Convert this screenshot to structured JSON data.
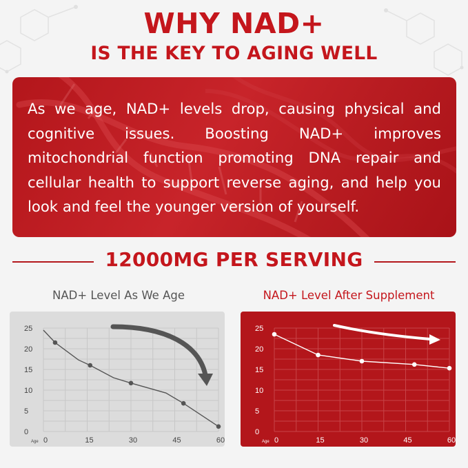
{
  "heading": {
    "line1": "WHY NAD+",
    "line2": "IS THE KEY TO AGING WELL"
  },
  "description": "As we age, NAD+ levels drop, causing physical and cognitive issues. Boosting NAD+ improves mitochondrial function promoting DNA repair and cellular health to support reverse aging, and help you look and feel the younger version of yourself.",
  "serving": "12000MG PER SERVING",
  "colors": {
    "brand_red": "#c4161c",
    "panel_red": "#b3161b",
    "chart_left_bg": "#dcdcdc",
    "chart_line_dark": "#555555",
    "white": "#ffffff"
  },
  "chart_data": [
    {
      "type": "line",
      "title": "NAD+ Level As We Age",
      "xlabel": "Age",
      "ylabel": "",
      "x_ticks": [
        0,
        15,
        30,
        45,
        60
      ],
      "y_ticks": [
        0,
        5,
        10,
        15,
        20,
        25
      ],
      "xlim": [
        0,
        60
      ],
      "ylim": [
        0,
        25
      ],
      "grid": true,
      "series": [
        {
          "x": [
            0,
            4,
            12,
            16,
            24,
            30,
            42,
            48,
            60
          ],
          "y": [
            24.5,
            21.5,
            17.3,
            16,
            13,
            11.7,
            9.3,
            6.8,
            1.2
          ],
          "markers_at_index": [
            1,
            3,
            5,
            7,
            8
          ]
        }
      ],
      "annotation": "curved arrow pointing downward"
    },
    {
      "type": "line",
      "title": "NAD+ Level After Supplement",
      "xlabel": "Age",
      "ylabel": "",
      "x_ticks": [
        0,
        15,
        30,
        45,
        60
      ],
      "y_ticks": [
        0,
        5,
        10,
        15,
        20,
        25
      ],
      "xlim": [
        0,
        60
      ],
      "ylim": [
        0,
        25
      ],
      "grid": true,
      "series": [
        {
          "x": [
            0,
            15,
            30,
            48,
            60
          ],
          "y": [
            23.5,
            18.5,
            17,
            16.2,
            15.3
          ],
          "markers_at_index": [
            0,
            1,
            2,
            3,
            4
          ]
        }
      ],
      "annotation": "straight arrow pointing right"
    }
  ]
}
